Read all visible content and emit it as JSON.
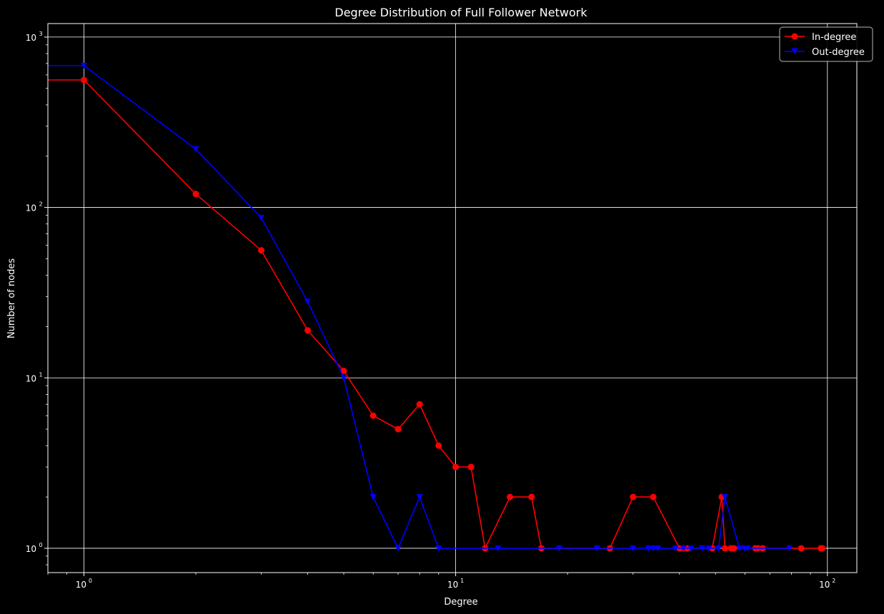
{
  "chart_data": {
    "type": "line",
    "title": "Degree Distribution of Full Follower Network",
    "xlabel": "Degree",
    "ylabel": "Number of nodes",
    "xscale": "log",
    "yscale": "log",
    "xlim": [
      0.8,
      120
    ],
    "ylim": [
      0.72,
      1200
    ],
    "grid": true,
    "legend_position": "top-right",
    "x_ticks": [
      {
        "value": 1,
        "base": "10",
        "exp": "0"
      },
      {
        "value": 10,
        "base": "10",
        "exp": "1"
      },
      {
        "value": 100,
        "base": "10",
        "exp": "2"
      }
    ],
    "y_ticks": [
      {
        "value": 1,
        "base": "10",
        "exp": "0"
      },
      {
        "value": 10,
        "base": "10",
        "exp": "1"
      },
      {
        "value": 100,
        "base": "10",
        "exp": "2"
      },
      {
        "value": 1000,
        "base": "10",
        "exp": "3"
      }
    ],
    "series": [
      {
        "name": "In-degree",
        "color": "#ff0000",
        "marker": "circle",
        "x": [
          0,
          1,
          2,
          3,
          4,
          5,
          6,
          7,
          8,
          9,
          10,
          11,
          12,
          14,
          16,
          17,
          26,
          30,
          34,
          40,
          41,
          42,
          49,
          52,
          53,
          55,
          56,
          64,
          65,
          67,
          85,
          96,
          97
        ],
        "y": [
          560,
          560,
          120,
          56,
          19,
          11,
          6,
          5,
          7,
          4,
          3,
          3,
          1,
          2,
          2,
          1,
          1,
          2,
          2,
          1,
          1,
          1,
          1,
          2,
          1,
          1,
          1,
          1,
          1,
          1,
          1,
          1,
          1
        ]
      },
      {
        "name": "Out-degree",
        "color": "#0000ff",
        "marker": "triangle-down",
        "x": [
          0,
          1,
          2,
          3,
          4,
          5,
          6,
          7,
          8,
          9,
          13,
          19,
          24,
          30,
          33,
          34,
          35,
          39,
          41,
          43,
          46,
          48,
          51,
          53,
          58,
          60,
          61,
          79
        ],
        "y": [
          680,
          680,
          220,
          87,
          28,
          10,
          2,
          1,
          2,
          1,
          1,
          1,
          1,
          1,
          1,
          1,
          1,
          1,
          1,
          1,
          1,
          1,
          1,
          2,
          1,
          1,
          1,
          1
        ]
      }
    ]
  }
}
